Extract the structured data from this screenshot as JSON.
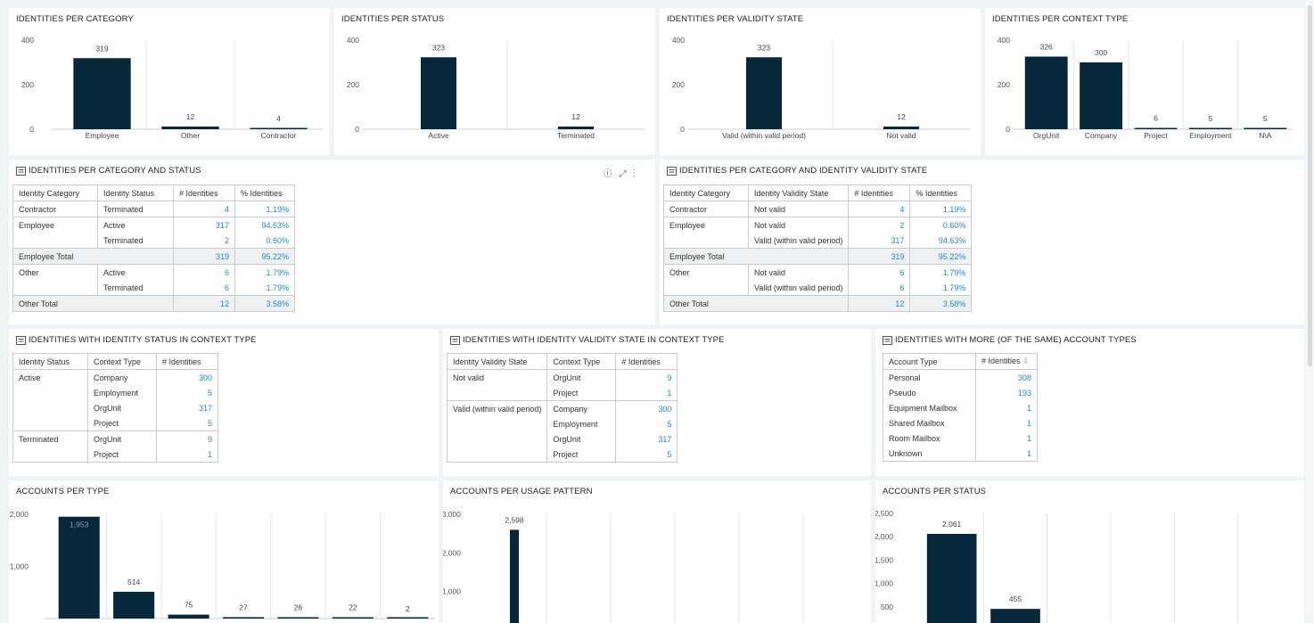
{
  "colors": {
    "bar": "#06283a",
    "link": "#1a8fc7",
    "grid": "#e3e6e8",
    "axis": "#c8cdd0"
  },
  "charts": [
    {
      "title": "IDENTITIES PER CATEGORY",
      "ticks": [
        "400",
        "200",
        "0"
      ],
      "chart_data": {
        "type": "bar",
        "categories": [
          "Employee",
          "Other",
          "Contractor"
        ],
        "values": [
          319,
          12,
          4
        ],
        "ylim": [
          0,
          400
        ]
      }
    },
    {
      "title": "IDENTITIES PER STATUS",
      "ticks": [
        "400",
        "200",
        "0"
      ],
      "chart_data": {
        "type": "bar",
        "categories": [
          "Active",
          "Terminated"
        ],
        "values": [
          323,
          12
        ],
        "ylim": [
          0,
          400
        ]
      }
    },
    {
      "title": "IDENTITIES PER VALIDITY STATE",
      "ticks": [
        "400",
        "200",
        "0"
      ],
      "chart_data": {
        "type": "bar",
        "categories": [
          "Valid (within valid period)",
          "Not valid"
        ],
        "values": [
          323,
          12
        ],
        "ylim": [
          0,
          400
        ]
      }
    },
    {
      "title": "IDENTITIES PER CONTEXT TYPE",
      "ticks": [
        "400",
        "200",
        "0"
      ],
      "chart_data": {
        "type": "bar",
        "categories": [
          "OrgUnit",
          "Company",
          "Project",
          "Employment",
          "N\\A"
        ],
        "values": [
          326,
          300,
          6,
          5,
          5
        ],
        "ylim": [
          0,
          400
        ]
      }
    },
    {
      "title": "ACCOUNTS PER TYPE",
      "ticks": [
        "2,000",
        "1,000"
      ],
      "chart_data": {
        "type": "bar",
        "categories": [
          "",
          "",
          "",
          "",
          "",
          "",
          ""
        ],
        "values": [
          1953,
          514,
          75,
          27,
          26,
          22,
          2
        ],
        "labels": [
          "1,953",
          "514",
          "75",
          "27",
          "26",
          "22",
          "2"
        ],
        "ylim": [
          0,
          2000
        ]
      }
    },
    {
      "title": "ACCOUNTS PER USAGE PATTERN",
      "ticks": [
        "3,000",
        "2,000",
        "1,000"
      ],
      "chart_data": {
        "type": "bar",
        "categories": [
          ""
        ],
        "values": [
          2598
        ],
        "labels": [
          "2,598"
        ],
        "ylim": [
          0,
          3000
        ]
      }
    },
    {
      "title": "ACCOUNTS PER STATUS",
      "ticks": [
        "2,500",
        "2,000",
        "1,500",
        "1,000",
        "500"
      ],
      "chart_data": {
        "type": "bar",
        "categories": [
          "",
          ""
        ],
        "values": [
          2061,
          455
        ],
        "labels": [
          "2,061",
          "455"
        ],
        "ylim": [
          0,
          2500
        ]
      }
    }
  ],
  "tables": {
    "cat_status": {
      "title": "IDENTITIES PER CATEGORY AND STATUS",
      "headers": [
        "Identity Category",
        "Identity Status",
        "# Identities",
        "% Identities"
      ],
      "rows": [
        {
          "c": "Contractor",
          "s": "Terminated",
          "n": "4",
          "p": "1.19%"
        },
        {
          "c": "Employee",
          "s": "Active",
          "n": "317",
          "p": "94.63%"
        },
        {
          "c": "",
          "s": "Terminated",
          "n": "2",
          "p": "0.60%"
        },
        {
          "c": "Employee Total",
          "s": "",
          "n": "319",
          "p": "95.22%"
        },
        {
          "c": "Other",
          "s": "Active",
          "n": "6",
          "p": "1.79%"
        },
        {
          "c": "",
          "s": "Terminated",
          "n": "6",
          "p": "1.79%"
        },
        {
          "c": "Other Total",
          "s": "",
          "n": "12",
          "p": "3.58%"
        }
      ]
    },
    "cat_validity": {
      "title": "IDENTITIES PER CATEGORY AND IDENTITY VALIDITY STATE",
      "headers": [
        "Identity Category",
        "Identity Validity State",
        "# Identities",
        "% Identities"
      ],
      "rows": [
        {
          "c": "Contractor",
          "s": "Not valid",
          "n": "4",
          "p": "1.19%"
        },
        {
          "c": "Employee",
          "s": "Not valid",
          "n": "2",
          "p": "0.60%"
        },
        {
          "c": "",
          "s": "Valid (within valid period)",
          "n": "317",
          "p": "94.63%"
        },
        {
          "c": "Employee Total",
          "s": "",
          "n": "319",
          "p": "95.22%"
        },
        {
          "c": "Other",
          "s": "Not valid",
          "n": "6",
          "p": "1.79%"
        },
        {
          "c": "",
          "s": "Valid (within valid period)",
          "n": "6",
          "p": "1.79%"
        },
        {
          "c": "Other Total",
          "s": "",
          "n": "12",
          "p": "3.58%"
        }
      ]
    },
    "status_ctx": {
      "title": "IDENTITIES WITH IDENTITY STATUS IN CONTEXT TYPE",
      "headers": [
        "Identity Status",
        "Context Type",
        "# Identities"
      ],
      "rows": [
        {
          "a": "Active",
          "b": "Company",
          "n": "300"
        },
        {
          "a": "",
          "b": "Employment",
          "n": "5"
        },
        {
          "a": "",
          "b": "OrgUnit",
          "n": "317"
        },
        {
          "a": "",
          "b": "Project",
          "n": "5"
        },
        {
          "a": "Terminated",
          "b": "OrgUnit",
          "n": "9"
        },
        {
          "a": "",
          "b": "Project",
          "n": "1"
        }
      ]
    },
    "validity_ctx": {
      "title": "IDENTITIES WITH IDENTITY VALIDITY STATE IN CONTEXT TYPE",
      "headers": [
        "Identity Validity State",
        "Context Type",
        "# Identities"
      ],
      "rows": [
        {
          "a": "Not valid",
          "b": "OrgUnit",
          "n": "9"
        },
        {
          "a": "",
          "b": "Project",
          "n": "1"
        },
        {
          "a": "Valid (within valid period)",
          "b": "Company",
          "n": "300"
        },
        {
          "a": "",
          "b": "Employment",
          "n": "5"
        },
        {
          "a": "",
          "b": "OrgUnit",
          "n": "317"
        },
        {
          "a": "",
          "b": "Project",
          "n": "5"
        }
      ]
    },
    "acct_types": {
      "title": "IDENTITIES WITH MORE (OF THE SAME) ACCOUNT TYPES",
      "headers": [
        "Account Type",
        "# Identities"
      ],
      "rows": [
        {
          "a": "Personal",
          "n": "308"
        },
        {
          "a": "Pseudo",
          "n": "193"
        },
        {
          "a": "Equipment Mailbox",
          "n": "1"
        },
        {
          "a": "Shared Mailbox",
          "n": "1"
        },
        {
          "a": "Room Mailbox",
          "n": "1"
        },
        {
          "a": "Unknown",
          "n": "1"
        }
      ]
    }
  }
}
